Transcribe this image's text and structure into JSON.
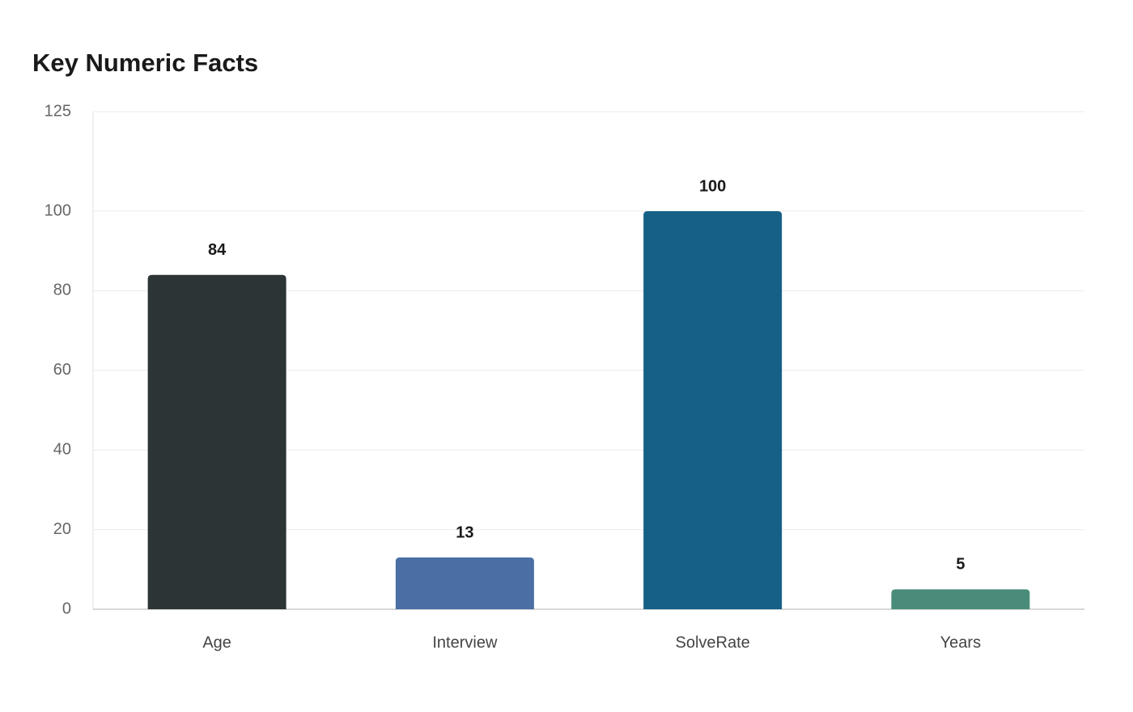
{
  "chart_data": {
    "type": "bar",
    "title": "Key Numeric Facts",
    "categories": [
      "Age",
      "Interview",
      "SolveRate",
      "Years"
    ],
    "values": [
      84,
      13,
      100,
      5
    ],
    "colors": [
      "#2d3436",
      "#4a6fa5",
      "#166088",
      "#4a8c7a"
    ],
    "ylim": [
      0,
      125
    ],
    "yticks": [
      0,
      20,
      40,
      60,
      80,
      100,
      125
    ],
    "grid": true
  }
}
